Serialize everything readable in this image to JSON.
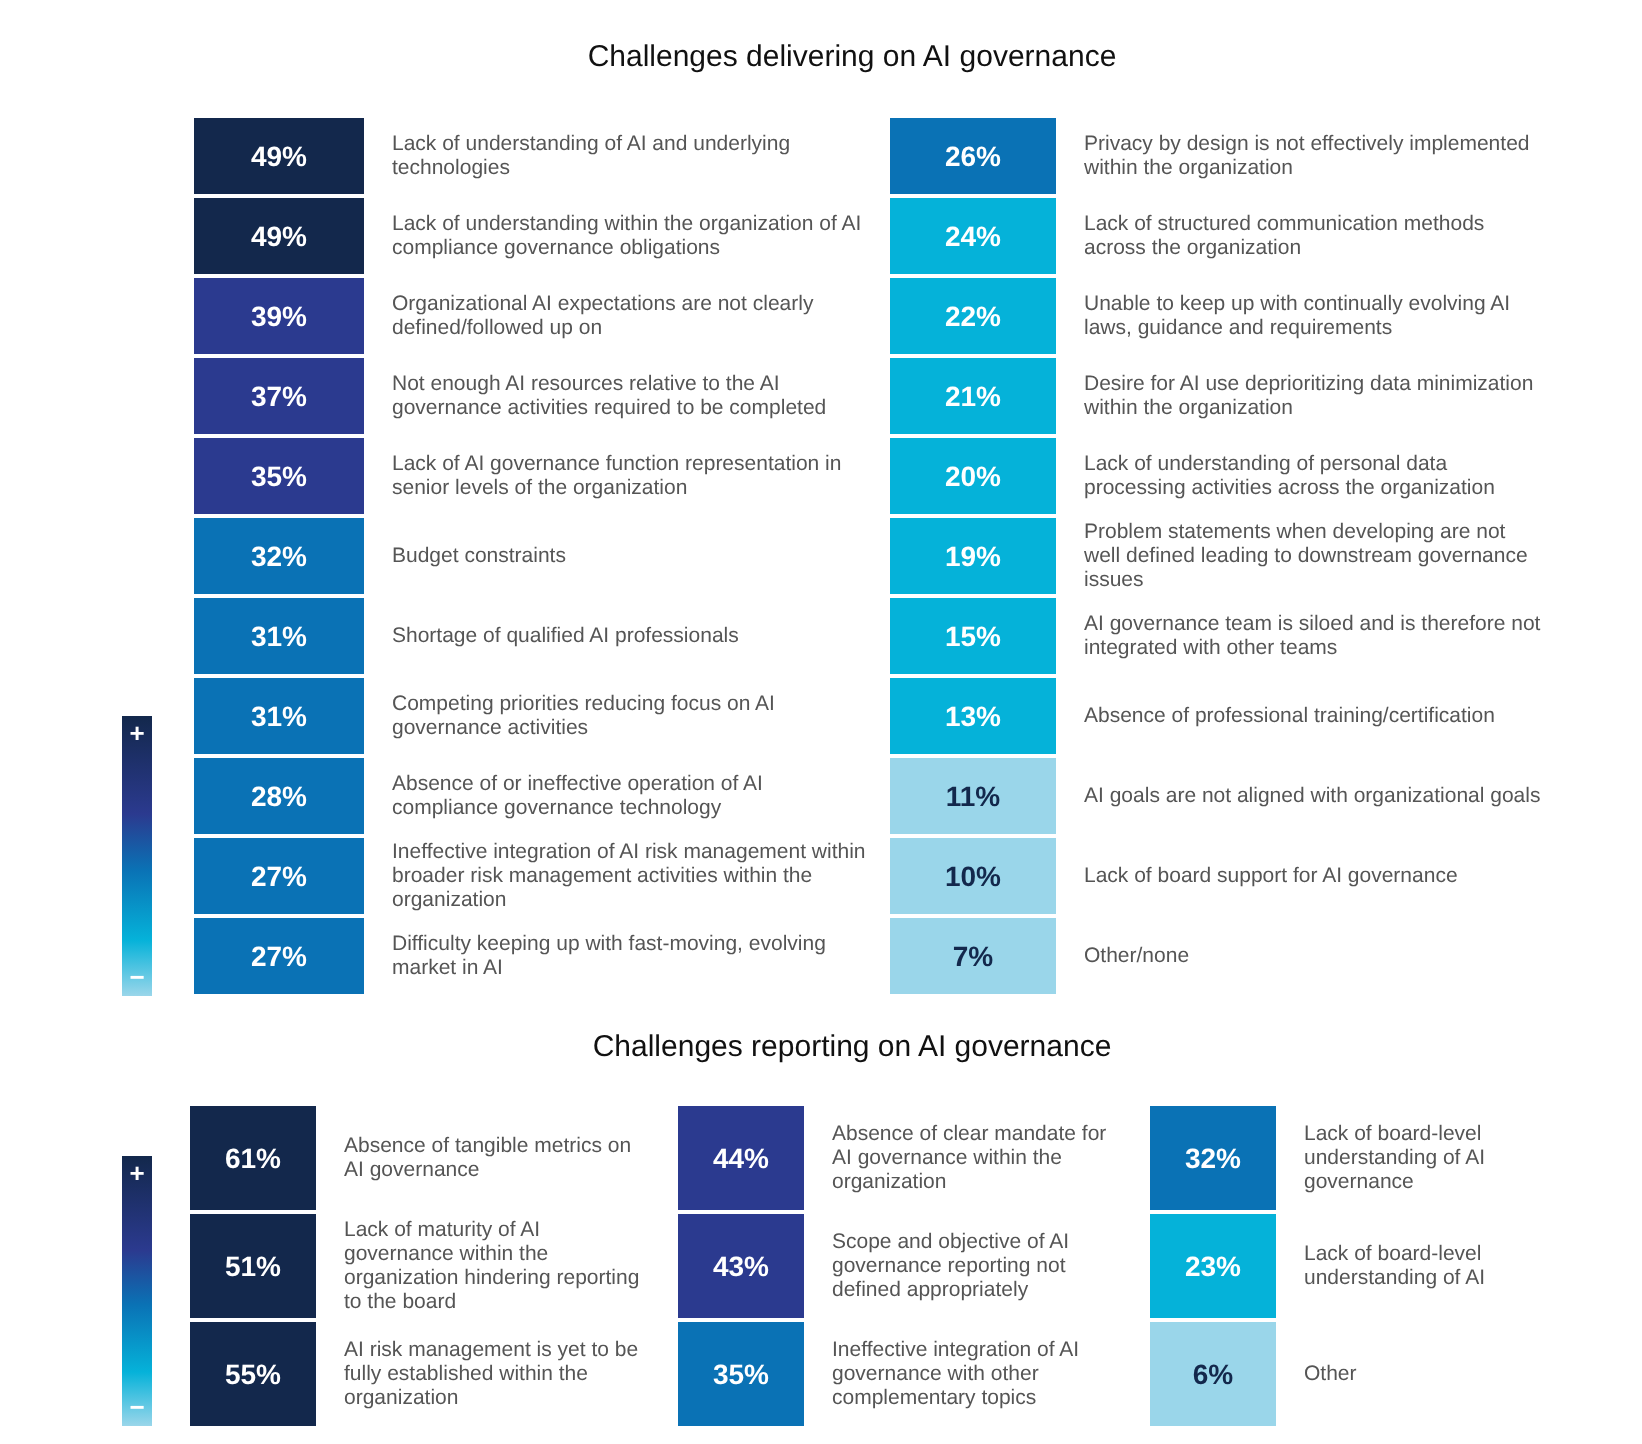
{
  "chart_data": [
    {
      "type": "other",
      "title": "Challenges delivering on AI governance",
      "categories": [
        "Lack of understanding of AI and underlying technologies",
        "Lack of understanding within the organization of AI compliance governance obligations",
        "Organizational AI expectations are not clearly defined/followed up on",
        "Not enough AI resources relative to the AI governance activities required to be completed",
        "Lack of AI governance function representation in senior levels of the organization",
        "Budget constraints",
        "Shortage of qualified AI professionals",
        "Competing priorities reducing focus on AI governance activities",
        "Absence of or ineffective operation of AI compliance governance technology",
        "Ineffective integration of AI risk management within broader risk management activities within the organization",
        "Difficulty keeping up with fast-moving, evolving market in AI"
      ],
      "values": [
        49,
        49,
        39,
        37,
        35,
        32,
        31,
        31,
        28,
        27,
        27
      ],
      "value_labels": [
        "49%",
        "49%",
        "39%",
        "37%",
        "35%",
        "32%",
        "31%",
        "31%",
        "28%",
        "27%",
        "27%"
      ],
      "colors": [
        "#13284c",
        "#13284c",
        "#2b3a8f",
        "#2b3a8f",
        "#2b3a8f",
        "#0a72b5",
        "#0a72b5",
        "#0a72b5",
        "#0a72b5",
        "#0a72b5",
        "#0a72b5"
      ],
      "annotations": [
        "+",
        "−"
      ]
    },
    {
      "type": "other",
      "categories": [
        "Privacy by design is not effectively implemented within the organization",
        "Lack of structured communication methods across the organization",
        "Unable to keep up with continually evolving AI laws, guidance and requirements",
        "Desire for AI use deprioritizing data minimization within the organization",
        "Lack of understanding of personal data processing activities across the organization",
        "Problem statements when developing are not well defined leading to downstream governance issues",
        "AI governance team is siloed and is therefore not integrated with other teams",
        "Absence of professional training/certification",
        "AI goals are not aligned with organizational goals",
        "Lack of board support for AI governance",
        "Other/none"
      ],
      "values": [
        26,
        24,
        22,
        21,
        20,
        19,
        15,
        13,
        11,
        10,
        7
      ],
      "value_labels": [
        "26%",
        "24%",
        "22%",
        "21%",
        "20%",
        "19%",
        "15%",
        "13%",
        "11%",
        "10%",
        "7%"
      ],
      "colors": [
        "#0a72b5",
        "#05b2d9",
        "#05b2d9",
        "#05b2d9",
        "#05b2d9",
        "#05b2d9",
        "#05b2d9",
        "#05b2d9",
        "#9ad6ea",
        "#9ad6ea",
        "#9ad6ea"
      ]
    },
    {
      "type": "other",
      "title": "Challenges reporting on AI governance",
      "categories": [
        "Absence of tangible metrics on AI governance",
        "Lack of maturity of AI governance within the organization hindering reporting to the board",
        "AI risk management is yet to be fully established within the organization"
      ],
      "values": [
        61,
        51,
        55
      ],
      "value_labels": [
        "61%",
        "51%",
        "55%"
      ],
      "colors": [
        "#13284c",
        "#13284c",
        "#13284c"
      ],
      "annotations": [
        "+",
        "−"
      ]
    },
    {
      "type": "other",
      "categories": [
        "Absence of clear mandate for AI governance within the organization",
        "Scope and objective of AI governance reporting not defined appropriately",
        "Ineffective integration of AI governance with other complementary topics"
      ],
      "values": [
        44,
        43,
        35
      ],
      "value_labels": [
        "44%",
        "43%",
        "35%"
      ],
      "colors": [
        "#2b3a8f",
        "#2b3a8f",
        "#0a72b5"
      ]
    },
    {
      "type": "other",
      "categories": [
        "Lack of board-level understanding of AI governance",
        "Lack of board-level understanding of AI",
        "Other"
      ],
      "values": [
        32,
        23,
        6
      ],
      "value_labels": [
        "32%",
        "23%",
        "6%"
      ],
      "colors": [
        "#0a72b5",
        "#05b2d9",
        "#9ad6ea"
      ]
    }
  ]
}
